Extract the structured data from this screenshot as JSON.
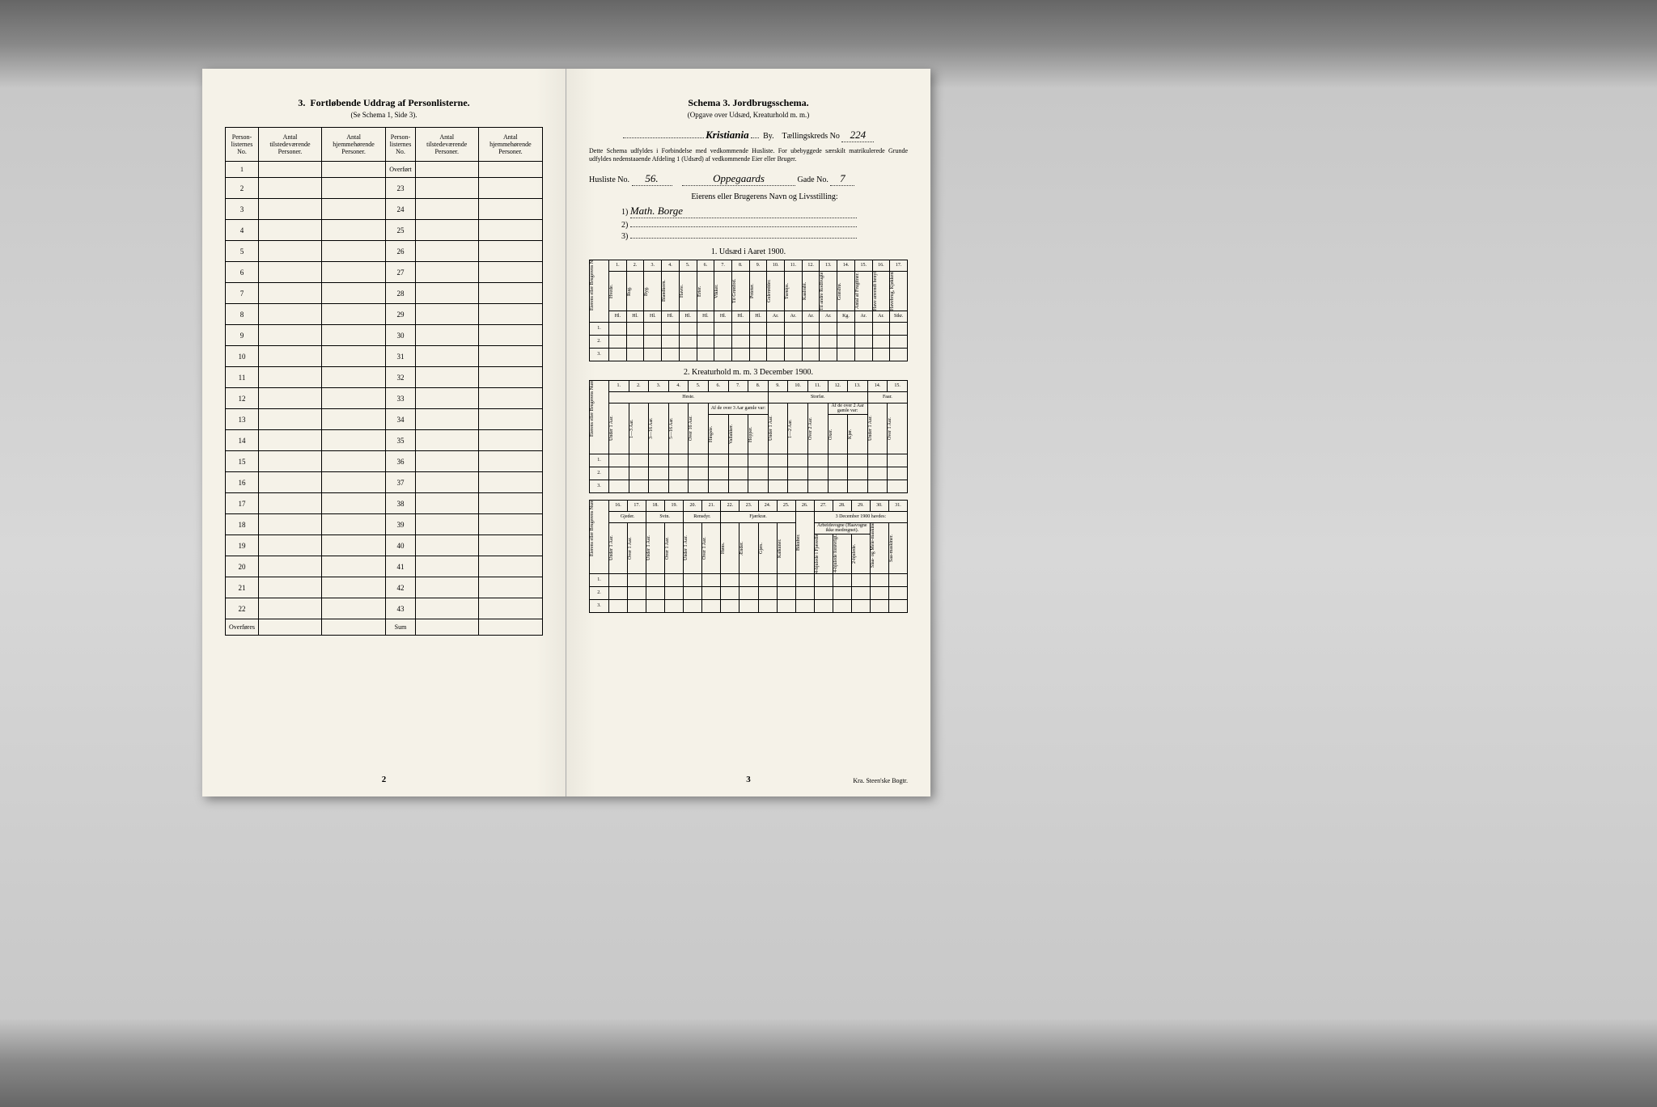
{
  "background_color": "#a8a8a8",
  "paper_color": "#f5f2e8",
  "left_page": {
    "section_no": "3.",
    "section_title": "Fortløbende Uddrag af Personlisterne.",
    "section_sub": "(Se Schema 1, Side 3).",
    "headers": {
      "c1": "Person-listernes No.",
      "c2": "Antal tilstedeværende Personer.",
      "c3": "Antal hjemmehørende Personer.",
      "c4": "Person-listernes No.",
      "c5": "Antal tilstedeværende Personer.",
      "c6": "Antal hjemmehørende Personer."
    },
    "overfort": "Overført",
    "left_rows": [
      "1",
      "2",
      "3",
      "4",
      "5",
      "6",
      "7",
      "8",
      "9",
      "10",
      "11",
      "12",
      "13",
      "14",
      "15",
      "16",
      "17",
      "18",
      "19",
      "20",
      "21",
      "22"
    ],
    "right_rows": [
      "23",
      "24",
      "25",
      "26",
      "27",
      "28",
      "29",
      "30",
      "31",
      "32",
      "33",
      "34",
      "35",
      "36",
      "37",
      "38",
      "39",
      "40",
      "41",
      "42",
      "43"
    ],
    "overfores": "Overføres",
    "sum": "Sum",
    "page_no": "2"
  },
  "right_page": {
    "schema_title": "Schema 3.   Jordbrugsschema.",
    "schema_sub": "(Opgave over Udsæd, Kreaturhold m. m.)",
    "city_label_suffix": "By.",
    "city": "Kristiania",
    "district_label": "Tællingskreds No",
    "district_no": "224",
    "desc": "Dette Schema udfyldes i Forbindelse med vedkommende Husliste. For ubebyggede særskilt matrikulerede Grunde udfyldes nedenstaaende Afdeling 1 (Udsæd) af vedkommende Eier eller Bruger.",
    "husliste_label": "Husliste No.",
    "husliste_no": "56.",
    "gade_label": "Gade No.",
    "gade_name": "Oppegaards",
    "gade_no": "7",
    "owner_title": "Eierens eller Brugerens Navn og Livsstilling:",
    "owner_1": "Math. Borge",
    "owner_2": "",
    "owner_3": "",
    "section1": {
      "title": "1.  Udsæd i Aaret 1900.",
      "row_label": "Eierens eller Brugerens Numer (se ovenfor).",
      "col_nums": [
        "1.",
        "2.",
        "3.",
        "4.",
        "5.",
        "6.",
        "7.",
        "8.",
        "9.",
        "10.",
        "11.",
        "12.",
        "13.",
        "14.",
        "15.",
        "16.",
        "17."
      ],
      "cols": [
        "Hvede.",
        "Rug.",
        "Byg.",
        "Blandkorn.",
        "Havre.",
        "Erter.",
        "Vikker.",
        "Til Grønfod.",
        "Poteter.",
        "Gulerødder.",
        "Turnips.",
        "Kaalrabi.",
        "Til andre Rodfrugter benyttet Areal i Ar a 1/10 Maal.",
        "Græsfrø.",
        "Antal af Frugttrær.",
        "Have anvendt benyttet.",
        "Havebrug, Kjøkkenhavevæxter."
      ],
      "units": [
        "Hl.",
        "Hl.",
        "Hl.",
        "Hl.",
        "Hl.",
        "Hl.",
        "Hl.",
        "Hl.",
        "Hl.",
        "Ar.",
        "Ar.",
        "Ar.",
        "Ar.",
        "Kg.",
        "Ar.",
        "Ar.",
        "Stkr."
      ],
      "rows": [
        "1.",
        "2.",
        "3."
      ]
    },
    "section2": {
      "title": "2.  Kreaturhold m. m. 3 December 1900.",
      "row_label": "Eierens eller Brugerens Numer.",
      "col_nums": [
        "1.",
        "2.",
        "3.",
        "4.",
        "5.",
        "6.",
        "7.",
        "8.",
        "9.",
        "10.",
        "11.",
        "12.",
        "13.",
        "14.",
        "15."
      ],
      "group_heste": "Heste.",
      "group_storfae": "Storfæ.",
      "group_faar": "Faar.",
      "sub_afde": "Af de over 3 Aar gamle var:",
      "sub_afde2": "Af de over 2 Aar gamle var:",
      "cols": [
        "Under 1 Aar.",
        "1—3 Aar.",
        "3—16 Aar.",
        "5—16 Aar.",
        "Over 16 Aar.",
        "Hingste.",
        "Vallakker.",
        "Hopper.",
        "Under 1 Aar.",
        "1—2 Aar.",
        "Over 2 Aar.",
        "Oxer.",
        "Kjør.",
        "Under 1 Aar.",
        "Over 1 Aar."
      ],
      "rows": [
        "1.",
        "2.",
        "3."
      ]
    },
    "section3": {
      "row_label": "Eierens eller Brugerens Numer.",
      "col_nums": [
        "16.",
        "17.",
        "18.",
        "19.",
        "20.",
        "21.",
        "22.",
        "23.",
        "24.",
        "25.",
        "26.",
        "27.",
        "28.",
        "29.",
        "30.",
        "31."
      ],
      "group_gjeder": "Gjeder.",
      "group_svin": "Svin.",
      "group_rensdyr": "Rensdyr.",
      "group_fjaerkrae": "Fjærkræ.",
      "group_haves": "3 December 1900 havdes:",
      "sub_arbeid": "Arbeidsvogne (Haavogne ikke medregnet).",
      "cols": [
        "Under 1 Aar.",
        "Over 1 Aar.",
        "Under 1 Aar.",
        "Over 1 Aar.",
        "Under 1 Aar.",
        "Over 1 Aar.",
        "Høns.",
        "Ænder.",
        "Gjæs.",
        "Kalkuner.",
        "Bikuber.",
        "4-hjulede i Fjæredle.",
        "4-hjulede forøvrigt.",
        "2-hjulede.",
        "Slaa- og Meie-maskiner.",
        "Saa-maskiner."
      ],
      "rows": [
        "1.",
        "2.",
        "3."
      ]
    },
    "page_no": "3",
    "printer": "Kra.  Steen'ske Bogtr."
  }
}
